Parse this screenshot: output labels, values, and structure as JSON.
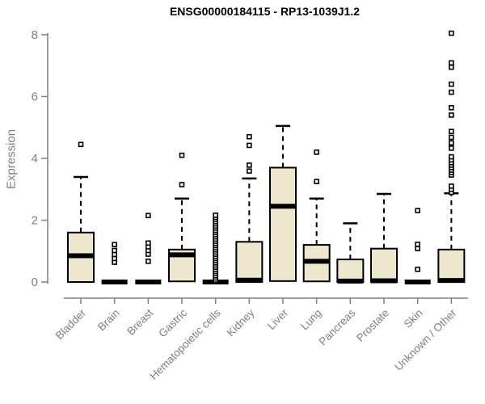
{
  "chart_data": {
    "type": "boxplot",
    "title": "ENSG00000184115 - RP13-1039J1.2",
    "xlabel": "",
    "ylabel": "Expression",
    "ylim": [
      0,
      8
    ],
    "yticks": [
      0,
      2,
      4,
      6,
      8
    ],
    "grid": false,
    "legend": "none",
    "colors": {
      "box_fill": "#ede7cd",
      "box_border": "#000000",
      "median": "#000000",
      "whisker": "#000000",
      "axis": "#808080",
      "tick_label": "#808080",
      "title": "#000000",
      "background": "#ffffff"
    },
    "categories": [
      "Bladder",
      "Brain",
      "Breast",
      "Gastric",
      "Hematopoietic cells",
      "Kidney",
      "Liver",
      "Lung",
      "Pancreas",
      "Prostate",
      "Skin",
      "Unknown / Other"
    ],
    "series": [
      {
        "name": "Bladder",
        "q1": 0,
        "median": 0.85,
        "q3": 1.6,
        "whisker_low": 0,
        "whisker_high": 3.4,
        "outliers": [
          4.45
        ]
      },
      {
        "name": "Brain",
        "q1": 0,
        "median": 0,
        "q3": 0,
        "whisker_low": 0,
        "whisker_high": 0,
        "outliers": [
          0.64,
          0.76,
          0.89,
          1.02,
          1.21
        ]
      },
      {
        "name": "Breast",
        "q1": 0,
        "median": 0,
        "q3": 0,
        "whisker_low": 0,
        "whisker_high": 0,
        "outliers": [
          0.67,
          0.9,
          1.02,
          1.14,
          1.26,
          2.15
        ]
      },
      {
        "name": "Gastric",
        "q1": 0.02,
        "median": 0.88,
        "q3": 1.05,
        "whisker_low": 0,
        "whisker_high": 2.7,
        "outliers": [
          3.15,
          4.1
        ]
      },
      {
        "name": "Hematopoietic cells",
        "q1": 0,
        "median": 0,
        "q3": 0,
        "whisker_low": 0,
        "whisker_high": 0,
        "outliers": [
          0.06,
          0.13,
          0.2,
          0.27,
          0.34,
          0.41,
          0.48,
          0.55,
          0.62,
          0.69,
          0.76,
          0.83,
          0.9,
          0.97,
          1.04,
          1.11,
          1.18,
          1.25,
          1.32,
          1.39,
          1.46,
          1.53,
          1.6,
          1.67,
          1.74,
          1.81,
          1.88,
          1.95,
          2.02,
          2.09,
          2.16
        ]
      },
      {
        "name": "Kidney",
        "q1": 0,
        "median": 0.06,
        "q3": 1.3,
        "whisker_low": 0,
        "whisker_high": 3.35,
        "outliers": [
          3.59,
          3.78,
          4.42,
          4.7
        ]
      },
      {
        "name": "Liver",
        "q1": 0.03,
        "median": 2.45,
        "q3": 3.7,
        "whisker_low": 0,
        "whisker_high": 5.05,
        "outliers": []
      },
      {
        "name": "Lung",
        "q1": 0.02,
        "median": 0.67,
        "q3": 1.2,
        "whisker_low": 0,
        "whisker_high": 2.7,
        "outliers": [
          3.25,
          4.2
        ]
      },
      {
        "name": "Pancreas",
        "q1": 0,
        "median": 0.03,
        "q3": 0.73,
        "whisker_low": 0,
        "whisker_high": 1.9,
        "outliers": []
      },
      {
        "name": "Prostate",
        "q1": 0,
        "median": 0.04,
        "q3": 1.08,
        "whisker_low": 0,
        "whisker_high": 2.85,
        "outliers": []
      },
      {
        "name": "Skin",
        "q1": 0,
        "median": 0,
        "q3": 0,
        "whisker_low": 0,
        "whisker_high": 0,
        "outliers": [
          0.41,
          1.08,
          1.22,
          2.31
        ]
      },
      {
        "name": "Unknown / Other",
        "q1": 0,
        "median": 0.05,
        "q3": 1.05,
        "whisker_low": 0,
        "whisker_high": 2.87,
        "outliers": [
          2.9,
          3.0,
          3.1,
          3.46,
          3.54,
          3.62,
          3.7,
          3.78,
          3.86,
          3.95,
          4.05,
          4.33,
          4.5,
          4.68,
          4.87,
          5.4,
          5.64,
          6.14,
          6.4,
          6.95,
          7.09,
          8.05
        ]
      }
    ]
  }
}
